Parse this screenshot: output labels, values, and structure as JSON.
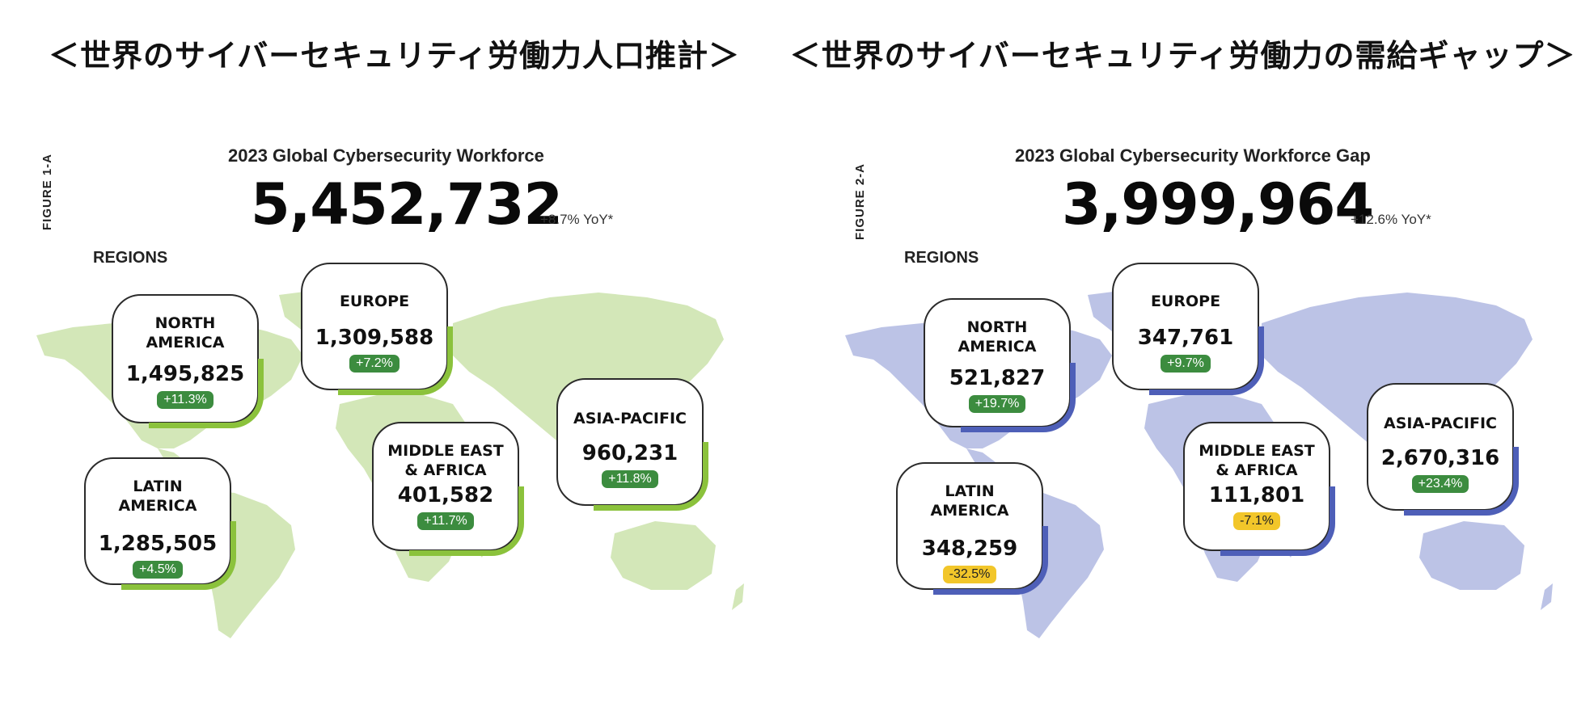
{
  "panels": [
    {
      "jp_title": "＜世界のサイバーセキュリティ労働力人口推計＞",
      "figure_label": "FIGURE 1-A",
      "subtitle": "2023 Global Cybersecurity Workforce",
      "total": "5,452,732",
      "yoy": "+8.7% YoY*",
      "regions_label": "REGIONS",
      "map_color": "#d3e7b8",
      "accent_color": "#8bc23c",
      "regions": [
        {
          "name": "NORTH\nAMERICA",
          "value": "1,495,825",
          "change": "+11.3%",
          "change_type": "positive"
        },
        {
          "name": "EUROPE",
          "value": "1,309,588",
          "change": "+7.2%",
          "change_type": "positive"
        },
        {
          "name": "LATIN\nAMERICA",
          "value": "1,285,505",
          "change": "+4.5%",
          "change_type": "positive"
        },
        {
          "name": "MIDDLE EAST\n& AFRICA",
          "value": "401,582",
          "change": "+11.7%",
          "change_type": "positive"
        },
        {
          "name": "ASIA-PACIFIC",
          "value": "960,231",
          "change": "+11.8%",
          "change_type": "positive"
        }
      ]
    },
    {
      "jp_title": "＜世界のサイバーセキュリティ労働力の需給ギャップ＞",
      "figure_label": "FIGURE 2-A",
      "subtitle": "2023 Global Cybersecurity Workforce Gap",
      "total": "3,999,964",
      "yoy": "+12.6% YoY*",
      "regions_label": "REGIONS",
      "map_color": "#bcc3e6",
      "accent_color": "#4e5fb8",
      "regions": [
        {
          "name": "NORTH\nAMERICA",
          "value": "521,827",
          "change": "+19.7%",
          "change_type": "positive"
        },
        {
          "name": "EUROPE",
          "value": "347,761",
          "change": "+9.7%",
          "change_type": "positive"
        },
        {
          "name": "LATIN\nAMERICA",
          "value": "348,259",
          "change": "-32.5%",
          "change_type": "negative"
        },
        {
          "name": "MIDDLE EAST\n& AFRICA",
          "value": "111,801",
          "change": "-7.1%",
          "change_type": "negative"
        },
        {
          "name": "ASIA-PACIFIC",
          "value": "2,670,316",
          "change": "+23.4%",
          "change_type": "positive"
        }
      ]
    }
  ]
}
